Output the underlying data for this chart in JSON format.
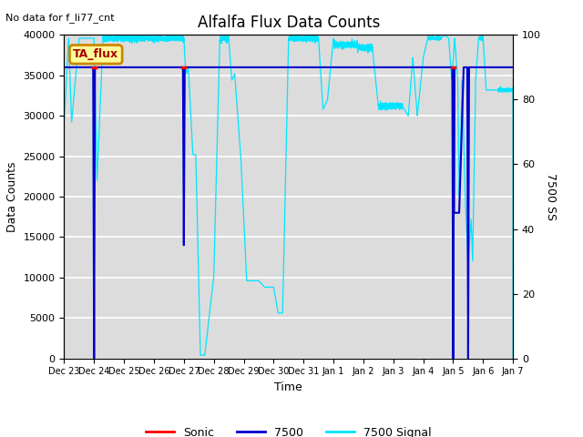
{
  "title": "Alfalfa Flux Data Counts",
  "subtitle": "No data for f_li77_cnt",
  "xlabel": "Time",
  "ylabel_left": "Data Counts",
  "ylabel_right": "7500 SS",
  "ylim_left": [
    0,
    40000
  ],
  "ylim_right": [
    0,
    100
  ],
  "background_color": "#dcdcdc",
  "legend_box_text": "TA_flux",
  "legend_box_color": "#ffff99",
  "legend_box_border": "#cc8800",
  "x_tick_labels": [
    "Dec 23",
    "Dec 24",
    "Dec 25",
    "Dec 26",
    "Dec 27",
    "Dec 28",
    "Dec 29",
    "Dec 30",
    "Dec 31",
    "Jan 1",
    "Jan 2",
    "Jan 3",
    "Jan 4",
    "Jan 5",
    "Jan 6",
    "Jan 7"
  ],
  "sonic_color": "#ff0000",
  "line7500_color": "#0000cc",
  "signal_color": "#00e5ff",
  "line7500_level": 36000
}
